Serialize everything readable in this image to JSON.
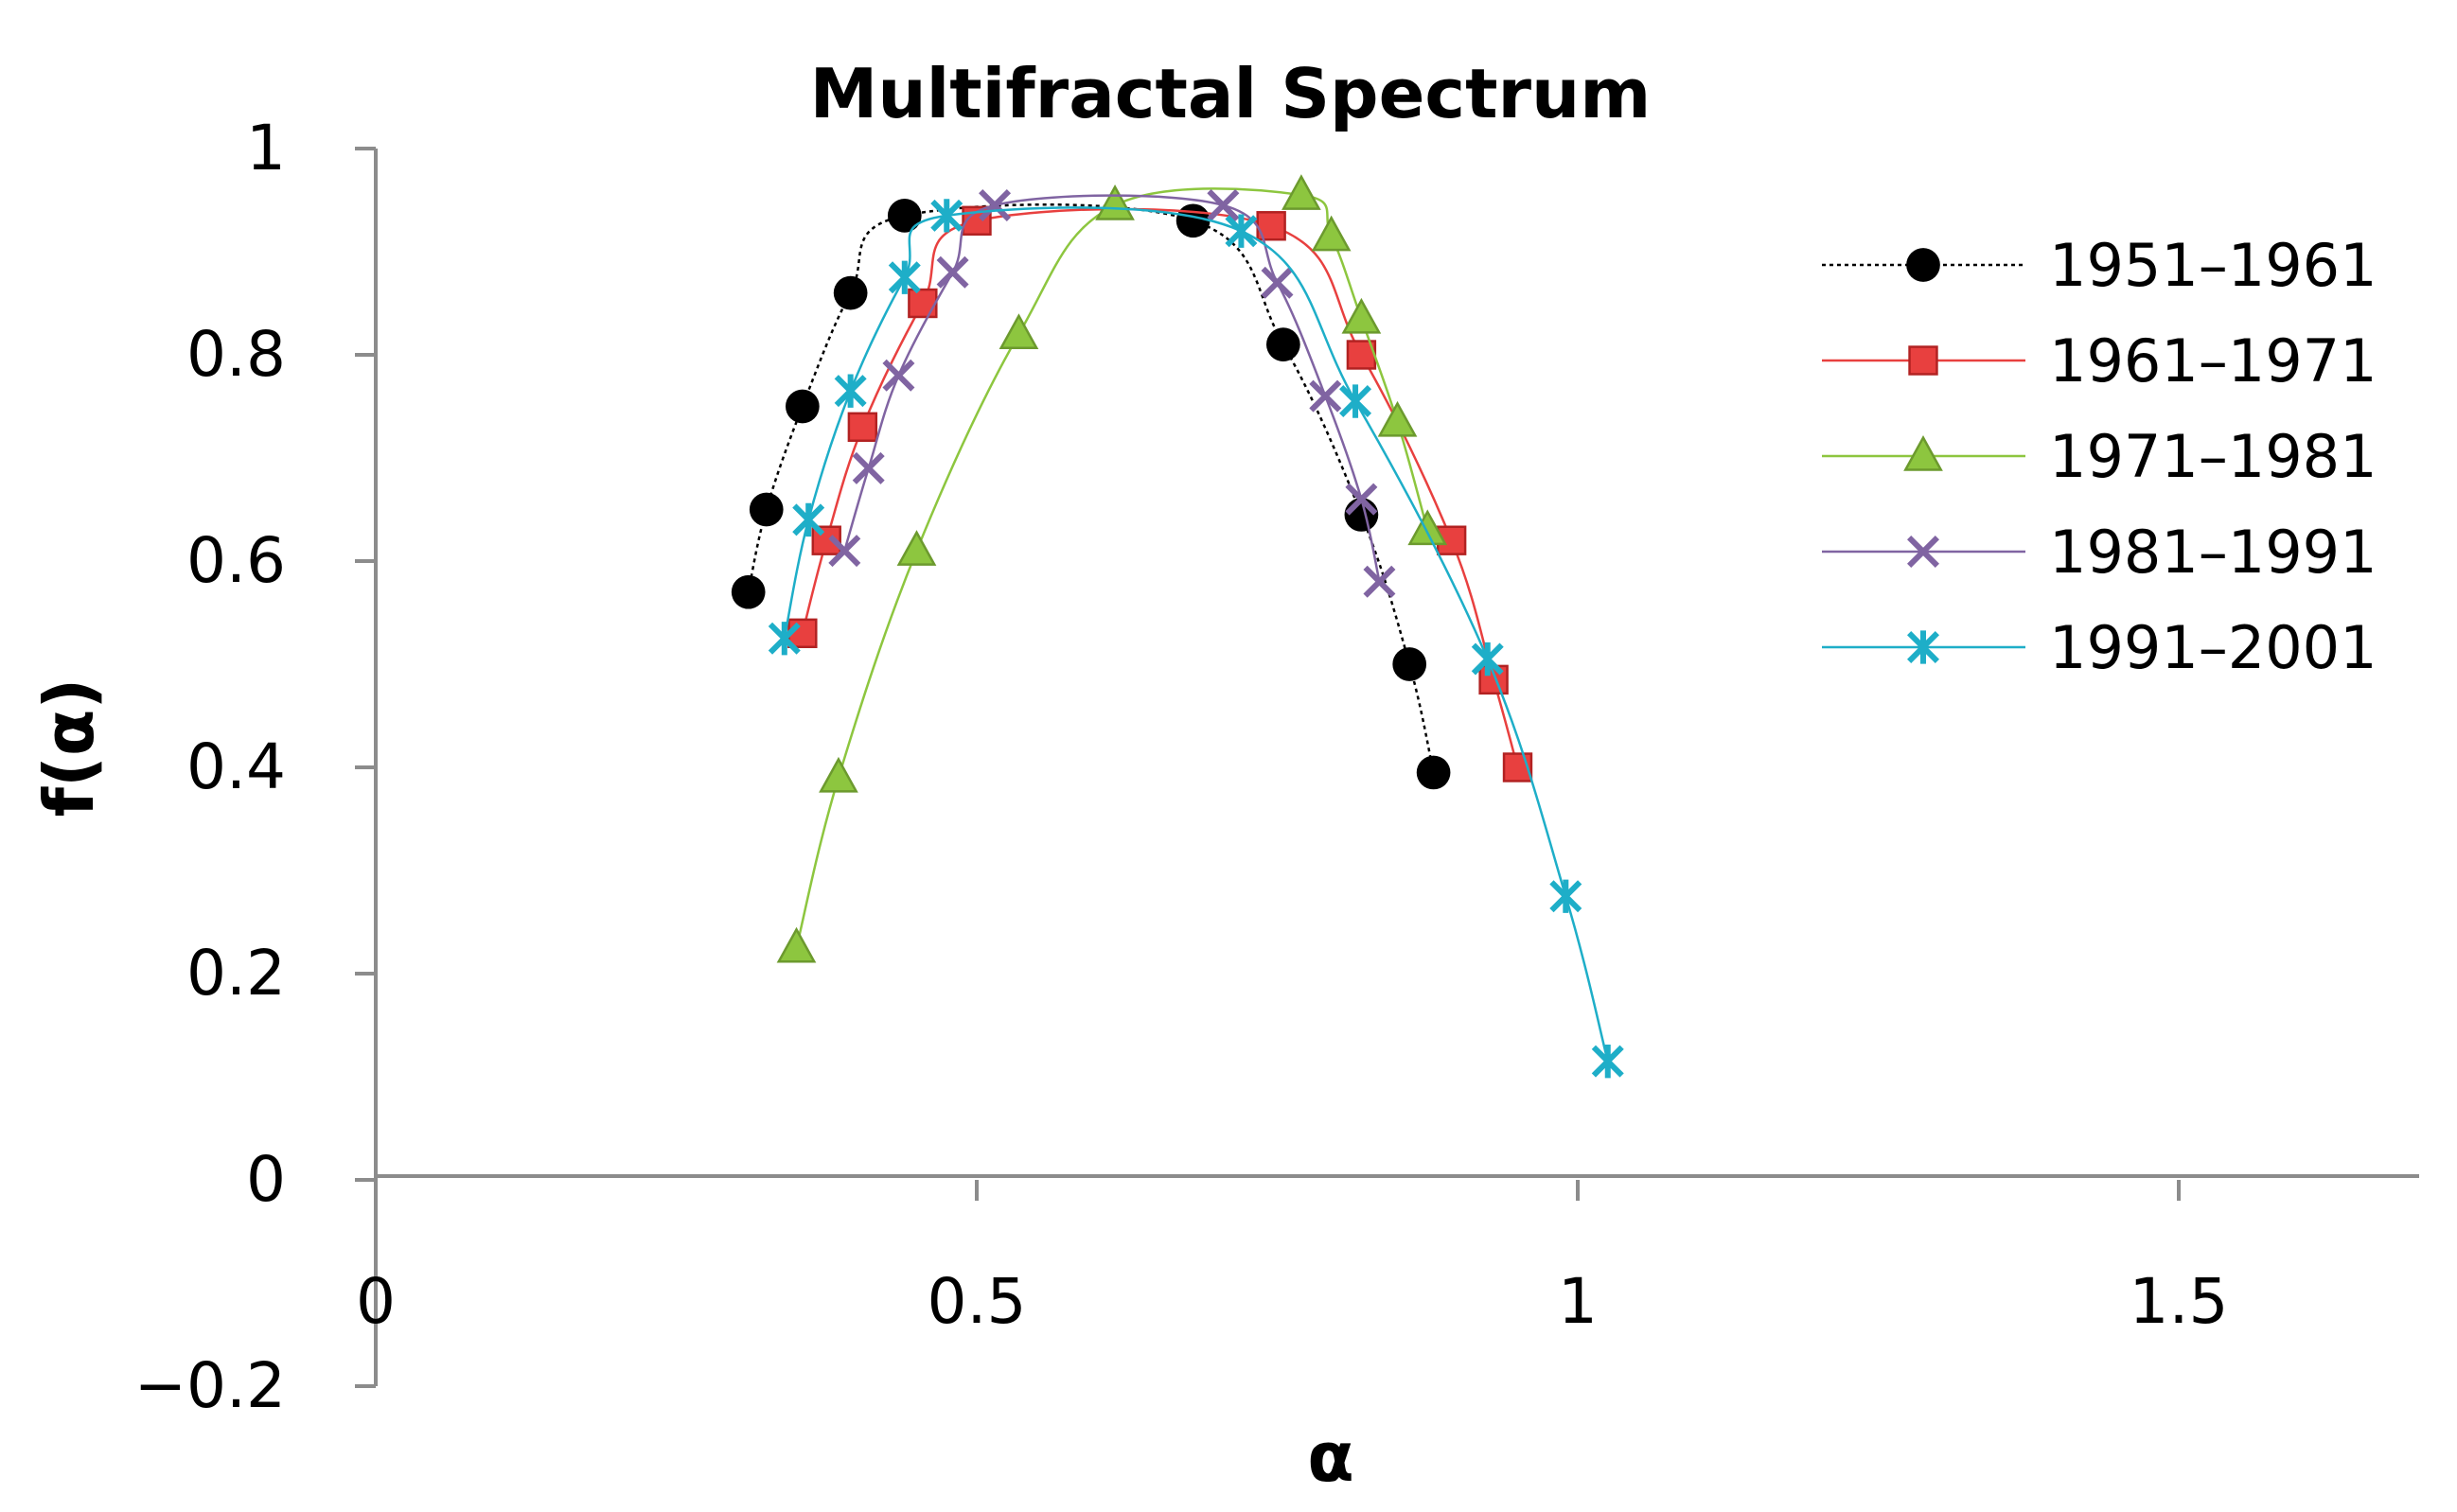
{
  "chart_data": {
    "type": "scatter",
    "title": "Multifractal Spectrum",
    "xlabel": "α",
    "ylabel": "f(α)",
    "xlim": [
      0,
      1.7
    ],
    "ylim": [
      -0.2,
      1
    ],
    "x_ticks": [
      {
        "value": 0,
        "label": "0"
      },
      {
        "value": 0.5,
        "label": "0.5"
      },
      {
        "value": 1,
        "label": "1"
      },
      {
        "value": 1.5,
        "label": "1.5"
      }
    ],
    "y_ticks": [
      {
        "value": -0.2,
        "label": "−0.2"
      },
      {
        "value": 0,
        "label": "0"
      },
      {
        "value": 0.2,
        "label": "0.2"
      },
      {
        "value": 0.4,
        "label": "0.4"
      },
      {
        "value": 0.6,
        "label": "0.6"
      },
      {
        "value": 0.8,
        "label": "0.8"
      },
      {
        "value": 1,
        "label": "1"
      }
    ],
    "grid": false,
    "legend_position": "right",
    "series": [
      {
        "name": "1951-1961",
        "color": "#000000",
        "marker": "circle",
        "line_style": "dotted",
        "points": [
          [
            0.31,
            0.57
          ],
          [
            0.325,
            0.65
          ],
          [
            0.355,
            0.75
          ],
          [
            0.395,
            0.86
          ],
          [
            0.44,
            0.935
          ],
          [
            0.68,
            0.93
          ],
          [
            0.755,
            0.81
          ],
          [
            0.82,
            0.645
          ],
          [
            0.86,
            0.5
          ],
          [
            0.88,
            0.395
          ]
        ]
      },
      {
        "name": "1961-1971",
        "color": "#e8403f",
        "marker": "square",
        "line_style": "solid",
        "points": [
          [
            0.355,
            0.53
          ],
          [
            0.375,
            0.62
          ],
          [
            0.405,
            0.73
          ],
          [
            0.455,
            0.85
          ],
          [
            0.5,
            0.93
          ],
          [
            0.745,
            0.925
          ],
          [
            0.82,
            0.8
          ],
          [
            0.895,
            0.62
          ],
          [
            0.93,
            0.485
          ],
          [
            0.95,
            0.4
          ]
        ]
      },
      {
        "name": "1971-1981",
        "color": "#8dc63f",
        "marker": "triangle",
        "line_style": "solid",
        "points": [
          [
            0.35,
            0.225
          ],
          [
            0.385,
            0.39
          ],
          [
            0.45,
            0.61
          ],
          [
            0.535,
            0.82
          ],
          [
            0.615,
            0.945
          ],
          [
            0.77,
            0.955
          ],
          [
            0.795,
            0.915
          ],
          [
            0.82,
            0.835
          ],
          [
            0.85,
            0.735
          ],
          [
            0.875,
            0.63
          ]
        ]
      },
      {
        "name": "1981-1991",
        "color": "#8064a2",
        "marker": "x",
        "line_style": "solid",
        "points": [
          [
            0.39,
            0.61
          ],
          [
            0.41,
            0.69
          ],
          [
            0.435,
            0.78
          ],
          [
            0.48,
            0.88
          ],
          [
            0.515,
            0.945
          ],
          [
            0.705,
            0.945
          ],
          [
            0.75,
            0.87
          ],
          [
            0.79,
            0.76
          ],
          [
            0.82,
            0.66
          ],
          [
            0.835,
            0.58
          ]
        ]
      },
      {
        "name": "1991-2001",
        "color": "#1eaec8",
        "marker": "star",
        "line_style": "solid",
        "points": [
          [
            0.34,
            0.525
          ],
          [
            0.36,
            0.64
          ],
          [
            0.395,
            0.765
          ],
          [
            0.44,
            0.875
          ],
          [
            0.475,
            0.935
          ],
          [
            0.72,
            0.92
          ],
          [
            0.815,
            0.755
          ],
          [
            0.925,
            0.505
          ],
          [
            0.99,
            0.275
          ],
          [
            1.025,
            0.115
          ]
        ]
      }
    ]
  }
}
